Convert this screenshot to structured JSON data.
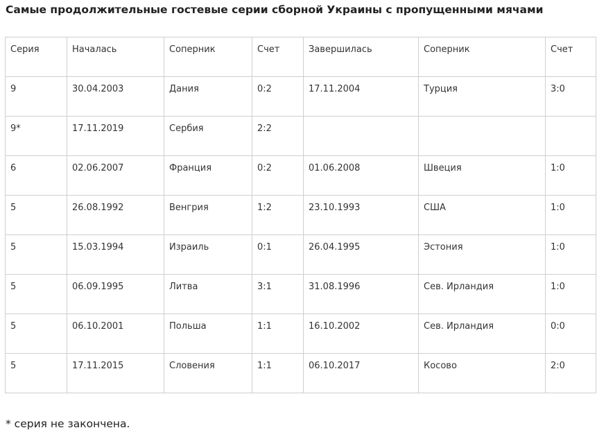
{
  "title": "Самые продолжительные гостевые серии сборной Украины с пропущенными мячами",
  "table": {
    "headers": [
      "Серия",
      "Началась",
      "Соперник",
      "Счет",
      "Завершилась",
      "Соперник",
      "Счет"
    ],
    "rows": [
      [
        "9",
        "30.04.2003",
        "Дания",
        "0:2",
        "17.11.2004",
        "Турция",
        "3:0"
      ],
      [
        "9*",
        "17.11.2019",
        "Сербия",
        "2:2",
        "",
        "",
        ""
      ],
      [
        "6",
        "02.06.2007",
        "Франция",
        "0:2",
        "01.06.2008",
        "Швеция",
        "1:0"
      ],
      [
        "5",
        "26.08.1992",
        "Венгрия",
        "1:2",
        "23.10.1993",
        "США",
        "1:0"
      ],
      [
        "5",
        "15.03.1994",
        "Израиль",
        "0:1",
        "26.04.1995",
        "Эстония",
        "1:0"
      ],
      [
        "5",
        "06.09.1995",
        "Литва",
        "3:1",
        "31.08.1996",
        "Сев. Ирландия",
        "1:0"
      ],
      [
        "5",
        "06.10.2001",
        "Польша",
        "1:1",
        "16.10.2002",
        "Сев. Ирландия",
        "0:0"
      ],
      [
        "5",
        "17.11.2015",
        "Словения",
        "1:1",
        "06.10.2017",
        "Косово",
        "2:0"
      ]
    ]
  },
  "footnote": "* серия не закончена."
}
